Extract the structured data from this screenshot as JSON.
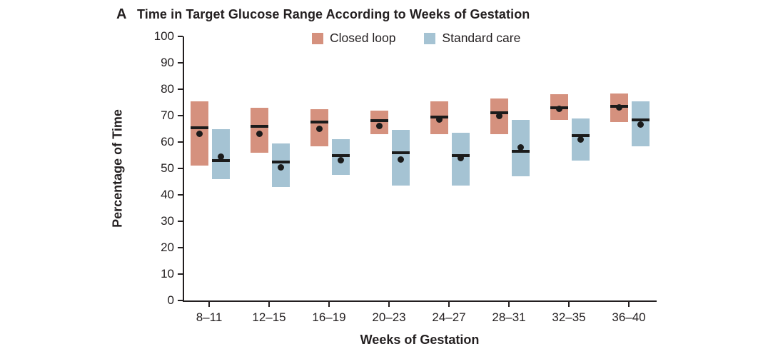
{
  "panel_label": "A",
  "title": "Time in Target Glucose Range According to Weeks of Gestation",
  "legend": {
    "items": [
      {
        "label": "Closed loop",
        "color": "#D5917E"
      },
      {
        "label": "Standard care",
        "color": "#A5C3D3"
      }
    ]
  },
  "chart_data": {
    "type": "bar",
    "subtype": "range-box-with-median-and-mean",
    "title": "Time in Target Glucose Range According to Weeks of Gestation",
    "xlabel": "Weeks of Gestation",
    "ylabel": "Percentage of Time",
    "ylim": [
      0,
      100
    ],
    "yticks": [
      0,
      10,
      20,
      30,
      40,
      50,
      60,
      70,
      80,
      90,
      100
    ],
    "grid": false,
    "legend_position": "top-inside",
    "categories": [
      "8–11",
      "12–15",
      "16–19",
      "20–23",
      "24–27",
      "28–31",
      "32–35",
      "36–40"
    ],
    "series": [
      {
        "name": "Closed loop",
        "color": "#D5917E",
        "q3": [
          75.5,
          73,
          72.5,
          72,
          75.5,
          76.5,
          78,
          78.5
        ],
        "q1": [
          51,
          56,
          58.5,
          63,
          63,
          63,
          68.5,
          67.5
        ],
        "median": [
          65.5,
          66,
          67.5,
          68,
          69.5,
          71,
          73,
          73.5
        ],
        "mean": [
          63,
          63,
          65,
          66,
          68.5,
          70,
          72.5,
          73
        ]
      },
      {
        "name": "Standard care",
        "color": "#A5C3D3",
        "q3": [
          65,
          59.5,
          61,
          64.5,
          63.5,
          68.5,
          69,
          75.5
        ],
        "q1": [
          46,
          43,
          47.5,
          43.5,
          43.5,
          47,
          53,
          58.5
        ],
        "median": [
          53,
          52.5,
          55,
          56,
          55,
          56.5,
          62.5,
          68.5
        ],
        "mean": [
          54.5,
          50.5,
          53,
          53.5,
          54,
          58,
          61,
          66.5
        ]
      }
    ],
    "encoding_notes": {
      "box": "shaded vertical range per group",
      "median": "black horizontal line",
      "mean": "black dot"
    }
  }
}
